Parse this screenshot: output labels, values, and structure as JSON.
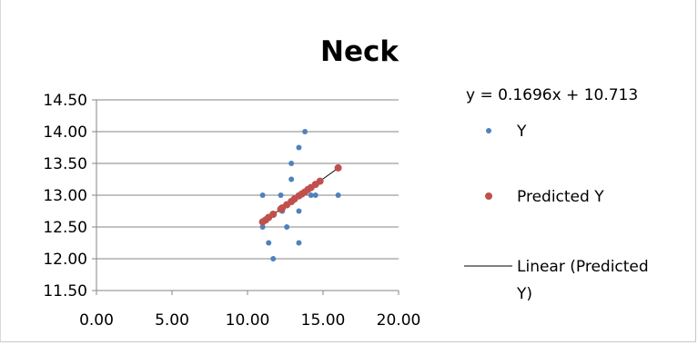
{
  "chart_data": {
    "type": "scatter",
    "title": "Neck",
    "xlabel": "",
    "ylabel": "",
    "xlim": [
      0,
      20
    ],
    "ylim": [
      11.5,
      14.5
    ],
    "x_ticks": [
      "0.00",
      "5.00",
      "10.00",
      "15.00",
      "20.00"
    ],
    "y_ticks": [
      "11.50",
      "12.00",
      "12.50",
      "13.00",
      "13.50",
      "14.00",
      "14.50"
    ],
    "grid": "horizontal",
    "legend_position": "right",
    "equation": "y = 0.1696x + 10.713",
    "trend": {
      "slope": 0.1696,
      "intercept": 10.713,
      "name": "Linear (Predicted Y)"
    },
    "series": [
      {
        "name": "Y",
        "color": "#4f81bd",
        "points": [
          [
            11.0,
            13.0
          ],
          [
            11.0,
            12.5
          ],
          [
            11.4,
            12.25
          ],
          [
            11.7,
            12.0
          ],
          [
            12.2,
            13.0
          ],
          [
            12.3,
            12.75
          ],
          [
            12.6,
            12.5
          ],
          [
            12.9,
            13.5
          ],
          [
            12.9,
            13.25
          ],
          [
            13.4,
            13.75
          ],
          [
            13.4,
            12.75
          ],
          [
            13.4,
            12.25
          ],
          [
            13.8,
            14.0
          ],
          [
            14.2,
            13.0
          ],
          [
            14.5,
            13.0
          ],
          [
            16.0,
            13.0
          ]
        ]
      },
      {
        "name": "Predicted Y",
        "color": "#c0504d",
        "points": [
          [
            11.0,
            12.58
          ],
          [
            11.2,
            12.61
          ],
          [
            11.4,
            12.65
          ],
          [
            11.7,
            12.7
          ],
          [
            12.2,
            12.78
          ],
          [
            12.3,
            12.8
          ],
          [
            12.6,
            12.85
          ],
          [
            12.9,
            12.9
          ],
          [
            13.1,
            12.94
          ],
          [
            13.4,
            12.99
          ],
          [
            13.6,
            13.02
          ],
          [
            13.8,
            13.05
          ],
          [
            14.0,
            13.09
          ],
          [
            14.2,
            13.12
          ],
          [
            14.5,
            13.17
          ],
          [
            14.8,
            13.22
          ],
          [
            16.0,
            13.43
          ]
        ]
      }
    ]
  }
}
